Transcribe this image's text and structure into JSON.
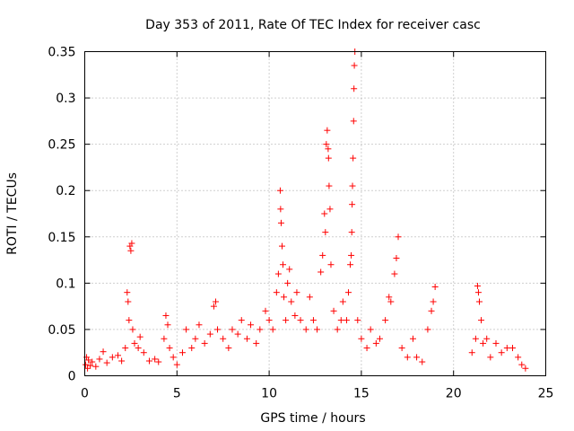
{
  "chart_data": {
    "type": "scatter",
    "title": "Day 353 of 2011, Rate Of TEC Index for receiver casc",
    "xlabel": "GPS time / hours",
    "ylabel": "ROTI / TECUs",
    "xlim": [
      0,
      25
    ],
    "ylim": [
      0,
      0.35
    ],
    "xticks": [
      "0",
      "5",
      "10",
      "15",
      "20",
      "25"
    ],
    "yticks": [
      "0",
      "0.05",
      "0.1",
      "0.15",
      "0.2",
      "0.25",
      "0.3",
      "0.35"
    ],
    "grid": true,
    "marker": "+",
    "marker_color": "#ff0000",
    "series": [
      {
        "name": "ROTI",
        "points": [
          [
            0.05,
            0.012
          ],
          [
            0.1,
            0.02
          ],
          [
            0.15,
            0.008
          ],
          [
            0.2,
            0.017
          ],
          [
            0.3,
            0.011
          ],
          [
            0.4,
            0.015
          ],
          [
            0.6,
            0.01
          ],
          [
            0.8,
            0.018
          ],
          [
            1.0,
            0.026
          ],
          [
            1.2,
            0.014
          ],
          [
            1.5,
            0.02
          ],
          [
            1.8,
            0.022
          ],
          [
            2.0,
            0.016
          ],
          [
            2.2,
            0.03
          ],
          [
            2.3,
            0.09
          ],
          [
            2.35,
            0.08
          ],
          [
            2.4,
            0.06
          ],
          [
            2.45,
            0.14
          ],
          [
            2.5,
            0.135
          ],
          [
            2.55,
            0.143
          ],
          [
            2.6,
            0.05
          ],
          [
            2.7,
            0.035
          ],
          [
            2.9,
            0.03
          ],
          [
            3.0,
            0.042
          ],
          [
            3.2,
            0.025
          ],
          [
            3.5,
            0.016
          ],
          [
            3.8,
            0.018
          ],
          [
            4.0,
            0.015
          ],
          [
            4.3,
            0.04
          ],
          [
            4.4,
            0.065
          ],
          [
            4.5,
            0.055
          ],
          [
            4.6,
            0.03
          ],
          [
            4.8,
            0.02
          ],
          [
            5.0,
            0.012
          ],
          [
            5.3,
            0.025
          ],
          [
            5.5,
            0.05
          ],
          [
            5.8,
            0.03
          ],
          [
            6.0,
            0.04
          ],
          [
            6.2,
            0.055
          ],
          [
            6.5,
            0.035
          ],
          [
            6.8,
            0.045
          ],
          [
            7.0,
            0.075
          ],
          [
            7.1,
            0.08
          ],
          [
            7.2,
            0.05
          ],
          [
            7.5,
            0.04
          ],
          [
            7.8,
            0.03
          ],
          [
            8.0,
            0.05
          ],
          [
            8.3,
            0.045
          ],
          [
            8.5,
            0.06
          ],
          [
            8.8,
            0.04
          ],
          [
            9.0,
            0.055
          ],
          [
            9.3,
            0.035
          ],
          [
            9.5,
            0.05
          ],
          [
            9.8,
            0.07
          ],
          [
            10.0,
            0.06
          ],
          [
            10.2,
            0.05
          ],
          [
            10.4,
            0.09
          ],
          [
            10.5,
            0.11
          ],
          [
            10.6,
            0.2
          ],
          [
            10.62,
            0.18
          ],
          [
            10.65,
            0.165
          ],
          [
            10.7,
            0.14
          ],
          [
            10.75,
            0.12
          ],
          [
            10.8,
            0.085
          ],
          [
            10.9,
            0.06
          ],
          [
            11.0,
            0.1
          ],
          [
            11.1,
            0.115
          ],
          [
            11.2,
            0.08
          ],
          [
            11.4,
            0.065
          ],
          [
            11.5,
            0.09
          ],
          [
            11.7,
            0.06
          ],
          [
            12.0,
            0.05
          ],
          [
            12.2,
            0.085
          ],
          [
            12.4,
            0.06
          ],
          [
            12.6,
            0.05
          ],
          [
            12.8,
            0.112
          ],
          [
            12.9,
            0.13
          ],
          [
            13.0,
            0.175
          ],
          [
            13.05,
            0.155
          ],
          [
            13.1,
            0.25
          ],
          [
            13.15,
            0.265
          ],
          [
            13.2,
            0.245
          ],
          [
            13.22,
            0.235
          ],
          [
            13.25,
            0.205
          ],
          [
            13.3,
            0.18
          ],
          [
            13.35,
            0.12
          ],
          [
            13.5,
            0.07
          ],
          [
            13.7,
            0.05
          ],
          [
            13.9,
            0.06
          ],
          [
            14.0,
            0.08
          ],
          [
            14.2,
            0.06
          ],
          [
            14.3,
            0.09
          ],
          [
            14.4,
            0.12
          ],
          [
            14.45,
            0.13
          ],
          [
            14.48,
            0.155
          ],
          [
            14.5,
            0.185
          ],
          [
            14.52,
            0.205
          ],
          [
            14.55,
            0.235
          ],
          [
            14.58,
            0.275
          ],
          [
            14.6,
            0.31
          ],
          [
            14.62,
            0.335
          ],
          [
            14.65,
            0.35
          ],
          [
            14.8,
            0.06
          ],
          [
            15.0,
            0.04
          ],
          [
            15.3,
            0.03
          ],
          [
            15.5,
            0.05
          ],
          [
            15.8,
            0.035
          ],
          [
            16.0,
            0.04
          ],
          [
            16.3,
            0.06
          ],
          [
            16.5,
            0.085
          ],
          [
            16.6,
            0.08
          ],
          [
            16.8,
            0.11
          ],
          [
            16.9,
            0.127
          ],
          [
            17.0,
            0.15
          ],
          [
            17.2,
            0.03
          ],
          [
            17.5,
            0.02
          ],
          [
            17.8,
            0.04
          ],
          [
            18.0,
            0.02
          ],
          [
            18.3,
            0.015
          ],
          [
            18.6,
            0.05
          ],
          [
            18.8,
            0.07
          ],
          [
            18.9,
            0.08
          ],
          [
            19.0,
            0.096
          ],
          [
            21.0,
            0.025
          ],
          [
            21.2,
            0.04
          ],
          [
            21.3,
            0.097
          ],
          [
            21.35,
            0.09
          ],
          [
            21.4,
            0.08
          ],
          [
            21.5,
            0.06
          ],
          [
            21.6,
            0.035
          ],
          [
            21.8,
            0.04
          ],
          [
            22.0,
            0.02
          ],
          [
            22.3,
            0.035
          ],
          [
            22.6,
            0.025
          ],
          [
            22.9,
            0.03
          ],
          [
            23.2,
            0.03
          ],
          [
            23.5,
            0.02
          ],
          [
            23.7,
            0.012
          ],
          [
            23.9,
            0.008
          ]
        ]
      }
    ]
  }
}
